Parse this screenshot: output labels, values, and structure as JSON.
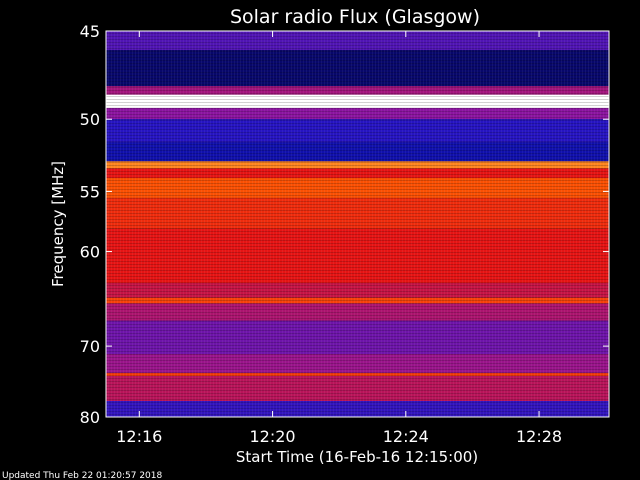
{
  "chart_data": {
    "type": "heatmap",
    "title": "Solar radio Flux (Glasgow)",
    "xlabel": "Start Time (16-Feb-16 12:15:00)",
    "ylabel": "Frequency [MHz]",
    "x_ticks": [
      "12:16",
      "12:20",
      "12:24",
      "12:28"
    ],
    "x_tick_minutes": [
      16,
      20,
      24,
      28
    ],
    "xlim_minutes": [
      15.0,
      30.1
    ],
    "y_ticks": [
      45,
      50,
      55,
      60,
      70,
      80
    ],
    "ylim": [
      45,
      80
    ],
    "y_scale": "reciprocal",
    "colormap": "blue-red-yellow-white",
    "bands": [
      {
        "from": 45.0,
        "to": 46.0,
        "level": 0.25
      },
      {
        "from": 46.0,
        "to": 48.0,
        "level": 0.05
      },
      {
        "from": 48.0,
        "to": 48.5,
        "level": 0.4
      },
      {
        "from": 48.5,
        "to": 49.3,
        "level": 1.0
      },
      {
        "from": 49.3,
        "to": 50.0,
        "level": 0.35
      },
      {
        "from": 50.0,
        "to": 51.5,
        "level": 0.18
      },
      {
        "from": 51.5,
        "to": 52.8,
        "level": 0.12
      },
      {
        "from": 52.8,
        "to": 53.3,
        "level": 0.8
      },
      {
        "from": 53.3,
        "to": 54.0,
        "level": 0.55
      },
      {
        "from": 54.0,
        "to": 55.5,
        "level": 0.72
      },
      {
        "from": 55.5,
        "to": 58.0,
        "level": 0.62
      },
      {
        "from": 58.0,
        "to": 63.0,
        "level": 0.55
      },
      {
        "from": 63.0,
        "to": 64.5,
        "level": 0.48
      },
      {
        "from": 64.5,
        "to": 65.1,
        "level": 0.68
      },
      {
        "from": 65.1,
        "to": 67.0,
        "level": 0.42
      },
      {
        "from": 67.0,
        "to": 71.0,
        "level": 0.3
      },
      {
        "from": 71.0,
        "to": 73.5,
        "level": 0.38
      },
      {
        "from": 73.5,
        "to": 73.9,
        "level": 0.66
      },
      {
        "from": 73.9,
        "to": 77.5,
        "level": 0.45
      },
      {
        "from": 77.5,
        "to": 80.0,
        "level": 0.2
      }
    ]
  },
  "footer": {
    "updated": "Updated Thu Feb 22 01:20:57 2018"
  }
}
